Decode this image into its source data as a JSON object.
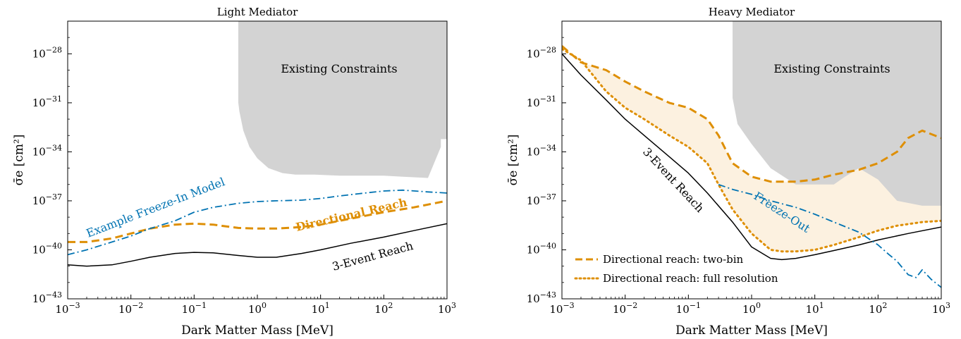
{
  "chart_data": [
    {
      "type": "line",
      "title": "Light Mediator",
      "xlabel": "Dark Matter Mass [MeV]",
      "ylabel": "σ̄e [cm²]",
      "xscale": "log",
      "yscale": "log",
      "xlim": [
        0.001,
        1000
      ],
      "ylim": [
        1e-43,
        1e-26
      ],
      "x_ticks": [
        {
          "value": 0.001,
          "base": "10",
          "exp": "−3"
        },
        {
          "value": 0.01,
          "base": "10",
          "exp": "−2"
        },
        {
          "value": 0.1,
          "base": "10",
          "exp": "−1"
        },
        {
          "value": 1,
          "base": "10",
          "exp": "0"
        },
        {
          "value": 10,
          "base": "10",
          "exp": "1"
        },
        {
          "value": 100,
          "base": "10",
          "exp": "2"
        },
        {
          "value": 1000,
          "base": "10",
          "exp": "3"
        }
      ],
      "y_ticks": [
        {
          "value": 1e-43,
          "base": "10",
          "exp": "−43"
        },
        {
          "value": 1e-40,
          "base": "10",
          "exp": "−40"
        },
        {
          "value": 1e-37,
          "base": "10",
          "exp": "−37"
        },
        {
          "value": 1e-34,
          "base": "10",
          "exp": "−34"
        },
        {
          "value": 1e-31,
          "base": "10",
          "exp": "−31"
        },
        {
          "value": 1e-28,
          "base": "10",
          "exp": "−28"
        }
      ],
      "regions": [
        {
          "label": "Existing Constraints",
          "color": "#d3d3d3",
          "x": [
            0.5,
            0.5,
            0.52,
            0.6,
            0.75,
            1,
            1.5,
            2.5,
            4,
            8,
            20,
            50,
            100,
            200,
            500,
            800,
            800,
            1000,
            1000
          ],
          "y": [
            1e-26,
            1e-31,
            3e-32,
            2e-33,
            2e-34,
            4e-35,
            1e-35,
            5e-36,
            4e-36,
            4e-36,
            3.5e-36,
            3.5e-36,
            3.5e-36,
            3e-36,
            2.5e-36,
            2e-34,
            6e-34,
            6e-34,
            1e-26
          ]
        }
      ],
      "series": [
        {
          "name": "3-Event Reach",
          "color": "#000000",
          "style": "solid",
          "x": [
            0.001,
            0.002,
            0.005,
            0.01,
            0.02,
            0.05,
            0.1,
            0.2,
            0.5,
            1,
            2,
            5,
            10,
            30,
            100,
            300,
            1000
          ],
          "y": [
            1.2e-41,
            1e-41,
            1.2e-41,
            2e-41,
            3.5e-41,
            6e-41,
            7e-41,
            6.5e-41,
            4.5e-41,
            3.5e-41,
            3.5e-41,
            6e-41,
            1e-40,
            2.5e-40,
            6e-40,
            1.5e-39,
            4e-39
          ]
        },
        {
          "name": "Directional Reach",
          "color": "#de8f05",
          "style": "dashed",
          "x": [
            0.001,
            0.002,
            0.005,
            0.01,
            0.02,
            0.05,
            0.1,
            0.2,
            0.3,
            0.5,
            1,
            2,
            5,
            10,
            20,
            50,
            100,
            300,
            1000
          ],
          "y": [
            3e-40,
            3e-40,
            5e-40,
            1e-39,
            2e-39,
            3.5e-39,
            4e-39,
            3.5e-39,
            2.8e-39,
            2.2e-39,
            2e-39,
            2e-39,
            2.5e-39,
            3.5e-39,
            6e-39,
            1.2e-38,
            2e-38,
            4e-38,
            1e-37
          ]
        },
        {
          "name": "Example Freeze-In Model",
          "color": "#0173b2",
          "style": "dashdot",
          "x": [
            0.001,
            0.002,
            0.005,
            0.01,
            0.02,
            0.05,
            0.1,
            0.2,
            0.5,
            1,
            2,
            5,
            10,
            20,
            50,
            100,
            200,
            500,
            1000
          ],
          "y": [
            5e-41,
            1e-40,
            3e-40,
            7e-40,
            2e-39,
            6e-39,
            2e-38,
            4e-38,
            7e-38,
            9e-38,
            1e-37,
            1.1e-37,
            1.4e-37,
            2e-37,
            3e-37,
            4e-37,
            4.5e-37,
            3.5e-37,
            3e-37
          ]
        }
      ],
      "annotations": [
        "Existing Constraints",
        "Example Freeze-In Model",
        "Directional Reach",
        "3-Event Reach"
      ]
    },
    {
      "type": "line",
      "title": "Heavy Mediator",
      "xlabel": "Dark Matter Mass [MeV]",
      "ylabel": "σ̄e [cm²]",
      "xscale": "log",
      "yscale": "log",
      "xlim": [
        0.001,
        1000
      ],
      "ylim": [
        1e-43,
        1e-26
      ],
      "x_ticks": [
        {
          "value": 0.001,
          "base": "10",
          "exp": "−3"
        },
        {
          "value": 0.01,
          "base": "10",
          "exp": "−2"
        },
        {
          "value": 0.1,
          "base": "10",
          "exp": "−1"
        },
        {
          "value": 1,
          "base": "10",
          "exp": "0"
        },
        {
          "value": 10,
          "base": "10",
          "exp": "1"
        },
        {
          "value": 100,
          "base": "10",
          "exp": "2"
        },
        {
          "value": 1000,
          "base": "10",
          "exp": "3"
        }
      ],
      "y_ticks": [
        {
          "value": 1e-43,
          "base": "10",
          "exp": "−43"
        },
        {
          "value": 1e-40,
          "base": "10",
          "exp": "−40"
        },
        {
          "value": 1e-37,
          "base": "10",
          "exp": "−37"
        },
        {
          "value": 1e-34,
          "base": "10",
          "exp": "−34"
        },
        {
          "value": 1e-31,
          "base": "10",
          "exp": "−31"
        },
        {
          "value": 1e-28,
          "base": "10",
          "exp": "−28"
        }
      ],
      "regions": [
        {
          "label": "Existing Constraints",
          "color": "#d3d3d3",
          "x": [
            0.5,
            0.5,
            0.6,
            1,
            2,
            5,
            10,
            20,
            30,
            50,
            100,
            200,
            500,
            1000,
            1000
          ],
          "y": [
            1e-26,
            2e-31,
            5e-33,
            3e-34,
            1e-35,
            1e-36,
            1e-36,
            1e-36,
            3e-36,
            1e-35,
            2e-36,
            1e-37,
            5e-38,
            5e-38,
            1e-26
          ]
        }
      ],
      "fill_between": {
        "color": "#fbecd6",
        "between": [
          "Directional reach: two-bin",
          "Directional reach: full resolution"
        ]
      },
      "series": [
        {
          "name": "3-Event Reach",
          "color": "#000000",
          "style": "solid",
          "x": [
            0.001,
            0.002,
            0.005,
            0.01,
            0.02,
            0.05,
            0.1,
            0.2,
            0.5,
            1,
            2,
            3,
            5,
            10,
            20,
            50,
            100,
            300,
            1000
          ],
          "y": [
            1e-28,
            5e-30,
            1.5e-31,
            1e-32,
            1e-33,
            5e-35,
            5e-36,
            3e-37,
            5e-39,
            1.5e-40,
            3e-41,
            2.5e-41,
            3e-41,
            5e-41,
            9e-41,
            2e-40,
            4e-40,
            1e-39,
            2.5e-39
          ]
        },
        {
          "name": "Directional reach: two-bin",
          "color": "#de8f05",
          "style": "dashed",
          "x": [
            0.001,
            0.002,
            0.005,
            0.01,
            0.02,
            0.05,
            0.1,
            0.2,
            0.3,
            0.5,
            1,
            2,
            5,
            10,
            20,
            50,
            100,
            200,
            300,
            500,
            1000
          ],
          "y": [
            3e-28,
            3e-29,
            1e-29,
            2e-30,
            5e-31,
            1e-31,
            5e-32,
            1e-32,
            1e-33,
            2e-35,
            3e-36,
            1.5e-36,
            1.5e-36,
            2e-36,
            4e-36,
            8e-36,
            2e-35,
            1e-34,
            7e-34,
            2e-33,
            7e-34
          ]
        },
        {
          "name": "Directional reach: full resolution",
          "color": "#de8f05",
          "style": "dotted",
          "x": [
            0.001,
            0.002,
            0.005,
            0.01,
            0.02,
            0.05,
            0.1,
            0.2,
            0.3,
            0.5,
            1,
            2,
            3,
            5,
            10,
            20,
            50,
            100,
            200,
            500,
            1000
          ],
          "y": [
            2e-28,
            4e-29,
            5e-31,
            5e-32,
            1e-32,
            1e-33,
            2e-34,
            2e-35,
            1e-36,
            3e-38,
            1e-39,
            1e-40,
            8e-41,
            8e-41,
            1e-40,
            2e-40,
            6e-40,
            1.5e-39,
            3e-39,
            5e-39,
            6e-39
          ]
        },
        {
          "name": "Freeze-Out",
          "color": "#0173b2",
          "style": "dashdot",
          "x": [
            0.3,
            0.5,
            1,
            2,
            5,
            10,
            20,
            50,
            100,
            150,
            200,
            300,
            400,
            500,
            700,
            1000
          ],
          "y": [
            1e-36,
            5e-37,
            2.5e-37,
            1e-37,
            4e-38,
            1.5e-38,
            5e-39,
            1.2e-39,
            2e-40,
            5e-41,
            2e-41,
            3e-42,
            2e-42,
            6e-42,
            1.5e-42,
            5e-43
          ]
        }
      ],
      "legend": {
        "position": "lower-left",
        "entries": [
          "Directional reach: two-bin",
          "Directional reach: full resolution"
        ]
      },
      "annotations": [
        "Existing Constraints",
        "3-Event Reach",
        "Freeze-Out"
      ]
    }
  ]
}
